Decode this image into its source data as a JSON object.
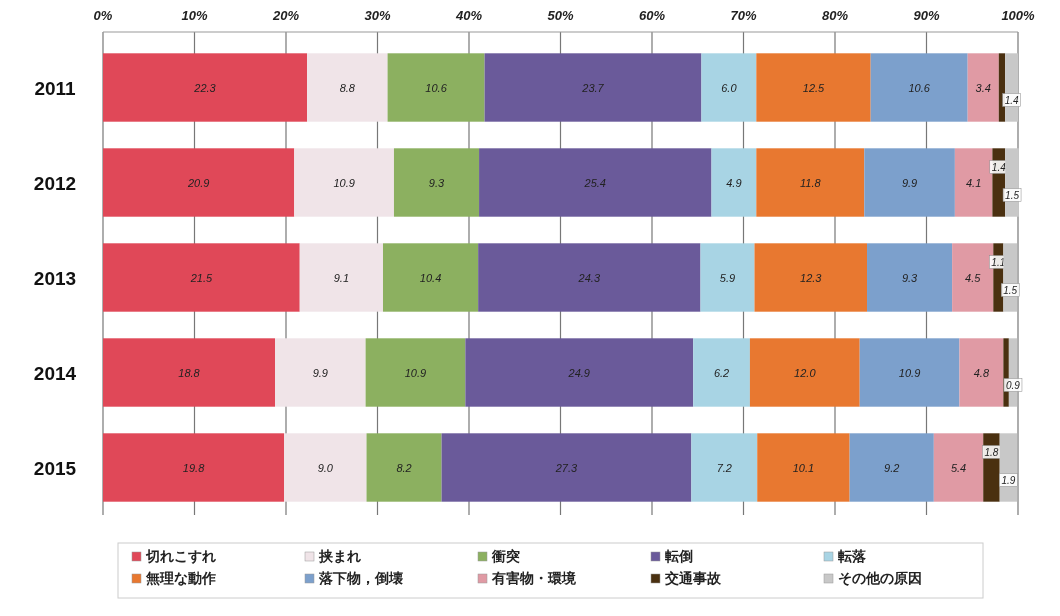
{
  "chart_data": {
    "type": "bar",
    "orientation": "horizontal",
    "stacked": true,
    "grid": "x",
    "legend": "bottom",
    "categories": [
      "2011",
      "2012",
      "2013",
      "2014",
      "2015"
    ],
    "xlim": [
      0,
      100
    ],
    "xticks": [
      {
        "value": 0,
        "label": "0%"
      },
      {
        "value": 10,
        "label": "10%"
      },
      {
        "value": 20,
        "label": "20%"
      },
      {
        "value": 30,
        "label": "30%"
      },
      {
        "value": 40,
        "label": "40%"
      },
      {
        "value": 50,
        "label": "50%"
      },
      {
        "value": 60,
        "label": "60%"
      },
      {
        "value": 70,
        "label": "70%"
      },
      {
        "value": 80,
        "label": "80%"
      },
      {
        "value": 90,
        "label": "90%"
      },
      {
        "value": 100,
        "label": "100%"
      }
    ],
    "series": [
      {
        "name": "切れこすれ",
        "color": "#e04858",
        "values": [
          22.3,
          20.9,
          21.5,
          18.8,
          19.8
        ],
        "value_labels": [
          "22.3",
          "20.9",
          "21.5",
          "18.8",
          "19.8"
        ]
      },
      {
        "name": "挟まれ",
        "color": "#f0e4e8",
        "values": [
          8.8,
          10.9,
          9.1,
          9.9,
          9.0
        ],
        "value_labels": [
          "8.8",
          "10.9",
          "9.1",
          "9.9",
          "9.0"
        ]
      },
      {
        "name": "衝突",
        "color": "#8cb060",
        "values": [
          10.6,
          9.3,
          10.4,
          10.9,
          8.2
        ],
        "value_labels": [
          "10.6",
          "9.3",
          "10.4",
          "10.9",
          "8.2"
        ]
      },
      {
        "name": "転倒",
        "color": "#6a5a9a",
        "values": [
          23.7,
          25.4,
          24.3,
          24.9,
          27.3
        ],
        "value_labels": [
          "23.7",
          "25.4",
          "24.3",
          "24.9",
          "27.3"
        ]
      },
      {
        "name": "転落",
        "color": "#a8d4e4",
        "values": [
          6.0,
          4.9,
          5.9,
          6.2,
          7.2
        ],
        "value_labels": [
          "6.0",
          "4.9",
          "5.9",
          "6.2",
          "7.2"
        ]
      },
      {
        "name": "無理な動作",
        "color": "#e87830",
        "values": [
          12.5,
          11.8,
          12.3,
          12.0,
          10.1
        ],
        "value_labels": [
          "12.5",
          "11.8",
          "12.3",
          "12.0",
          "10.1"
        ]
      },
      {
        "name": "落下物，倒壊",
        "color": "#7ca0cc",
        "values": [
          10.6,
          9.9,
          9.3,
          10.9,
          9.2
        ],
        "value_labels": [
          "10.6",
          "9.9",
          "9.3",
          "10.9",
          "9.2"
        ]
      },
      {
        "name": "有害物・環境",
        "color": "#e09aa4",
        "values": [
          3.4,
          4.1,
          4.5,
          4.8,
          5.4
        ],
        "value_labels": [
          "3.4",
          "4.1",
          "4.5",
          "4.8",
          "5.4"
        ]
      },
      {
        "name": "交通事故",
        "color": "#4a3010",
        "values": [
          0.7,
          1.4,
          1.1,
          0.6,
          1.8
        ],
        "value_labels": [
          null,
          "1.4",
          "1.1",
          null,
          "1.8"
        ]
      },
      {
        "name": "その他の原因",
        "color": "#c8c8c8",
        "values": [
          1.4,
          1.5,
          1.5,
          0.9,
          1.9
        ],
        "value_labels": [
          "1.4",
          "1.5",
          "1.5",
          "0.9",
          "1.9"
        ]
      }
    ]
  }
}
